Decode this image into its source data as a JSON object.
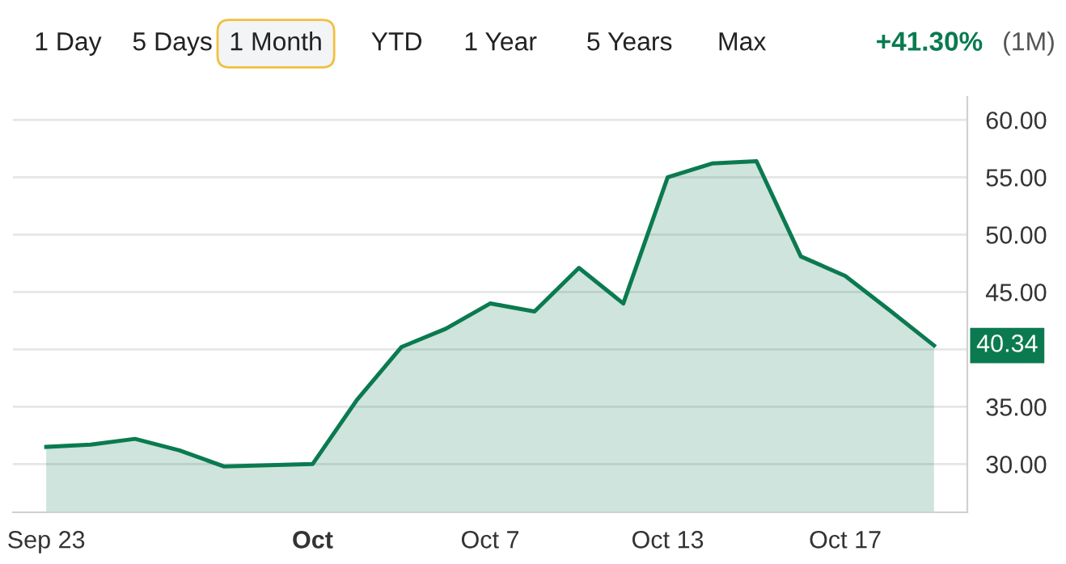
{
  "chart_data": {
    "type": "area",
    "categories": [
      "Sep 23",
      null,
      null,
      null,
      null,
      null,
      "Oct",
      null,
      null,
      null,
      "Oct 7",
      null,
      null,
      null,
      "Oct 13",
      null,
      null,
      null,
      "Oct 17",
      null,
      null
    ],
    "series": [
      {
        "color": "#0b7a50",
        "values": [
          31.5,
          31.7,
          32.2,
          31.2,
          29.8,
          29.9,
          30.0,
          35.6,
          40.2,
          41.8,
          44.0,
          43.3,
          47.1,
          44.0,
          55.0,
          56.2,
          56.4,
          48.1,
          46.4,
          43.4,
          40.34
        ],
        "value_labels": [
          null,
          null,
          null,
          null,
          null,
          null,
          null,
          null,
          null,
          null,
          null,
          null,
          null,
          null,
          null,
          null,
          null,
          null,
          null,
          null,
          "40.34"
        ]
      }
    ],
    "ylim": [
      25.8,
      62
    ],
    "yticks": [
      {
        "value": 30,
        "label": "30.00"
      },
      {
        "value": 35,
        "label": "35.00"
      },
      {
        "value": 40,
        "label": null
      },
      {
        "value": 45,
        "label": "45.00"
      },
      {
        "value": 50,
        "label": "50.00"
      },
      {
        "value": 55,
        "label": "55.00"
      },
      {
        "value": 60,
        "label": "60.00"
      }
    ],
    "grid": "y",
    "legend": false,
    "annotations": [
      "1 Day",
      "5 Days",
      "1 Month",
      "YTD",
      "1 Year",
      "5 Years",
      "Max",
      "+41.30%",
      "(1M)"
    ]
  }
}
